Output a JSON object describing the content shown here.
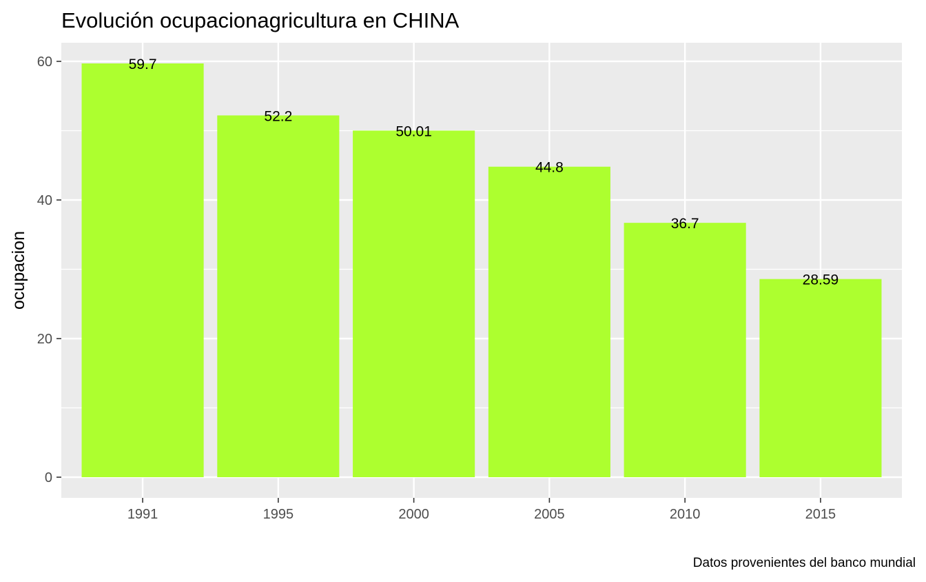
{
  "chart_data": {
    "type": "bar",
    "title": "Evolución ocupacionagricultura en CHINA",
    "xlabel": "",
    "ylabel": "ocupacion",
    "caption": "Datos provenientes del banco mundial",
    "categories": [
      "1991",
      "1995",
      "2000",
      "2005",
      "2010",
      "2015"
    ],
    "values": [
      59.7,
      52.2,
      50.01,
      44.8,
      36.7,
      28.59
    ],
    "value_labels": [
      "59.7",
      "52.2",
      "50.01",
      "44.8",
      "36.7",
      "28.59"
    ],
    "ylim": [
      -2.985,
      62.685
    ],
    "yticks": [
      0,
      20,
      40,
      60
    ],
    "ytick_labels": [
      "0",
      "20",
      "40",
      "60"
    ],
    "grid": true,
    "legend": "none",
    "colors": {
      "bar": "#adff2f",
      "panel": "#ebebeb",
      "grid": "#ffffff",
      "tick_text": "#4d4d4d"
    }
  }
}
